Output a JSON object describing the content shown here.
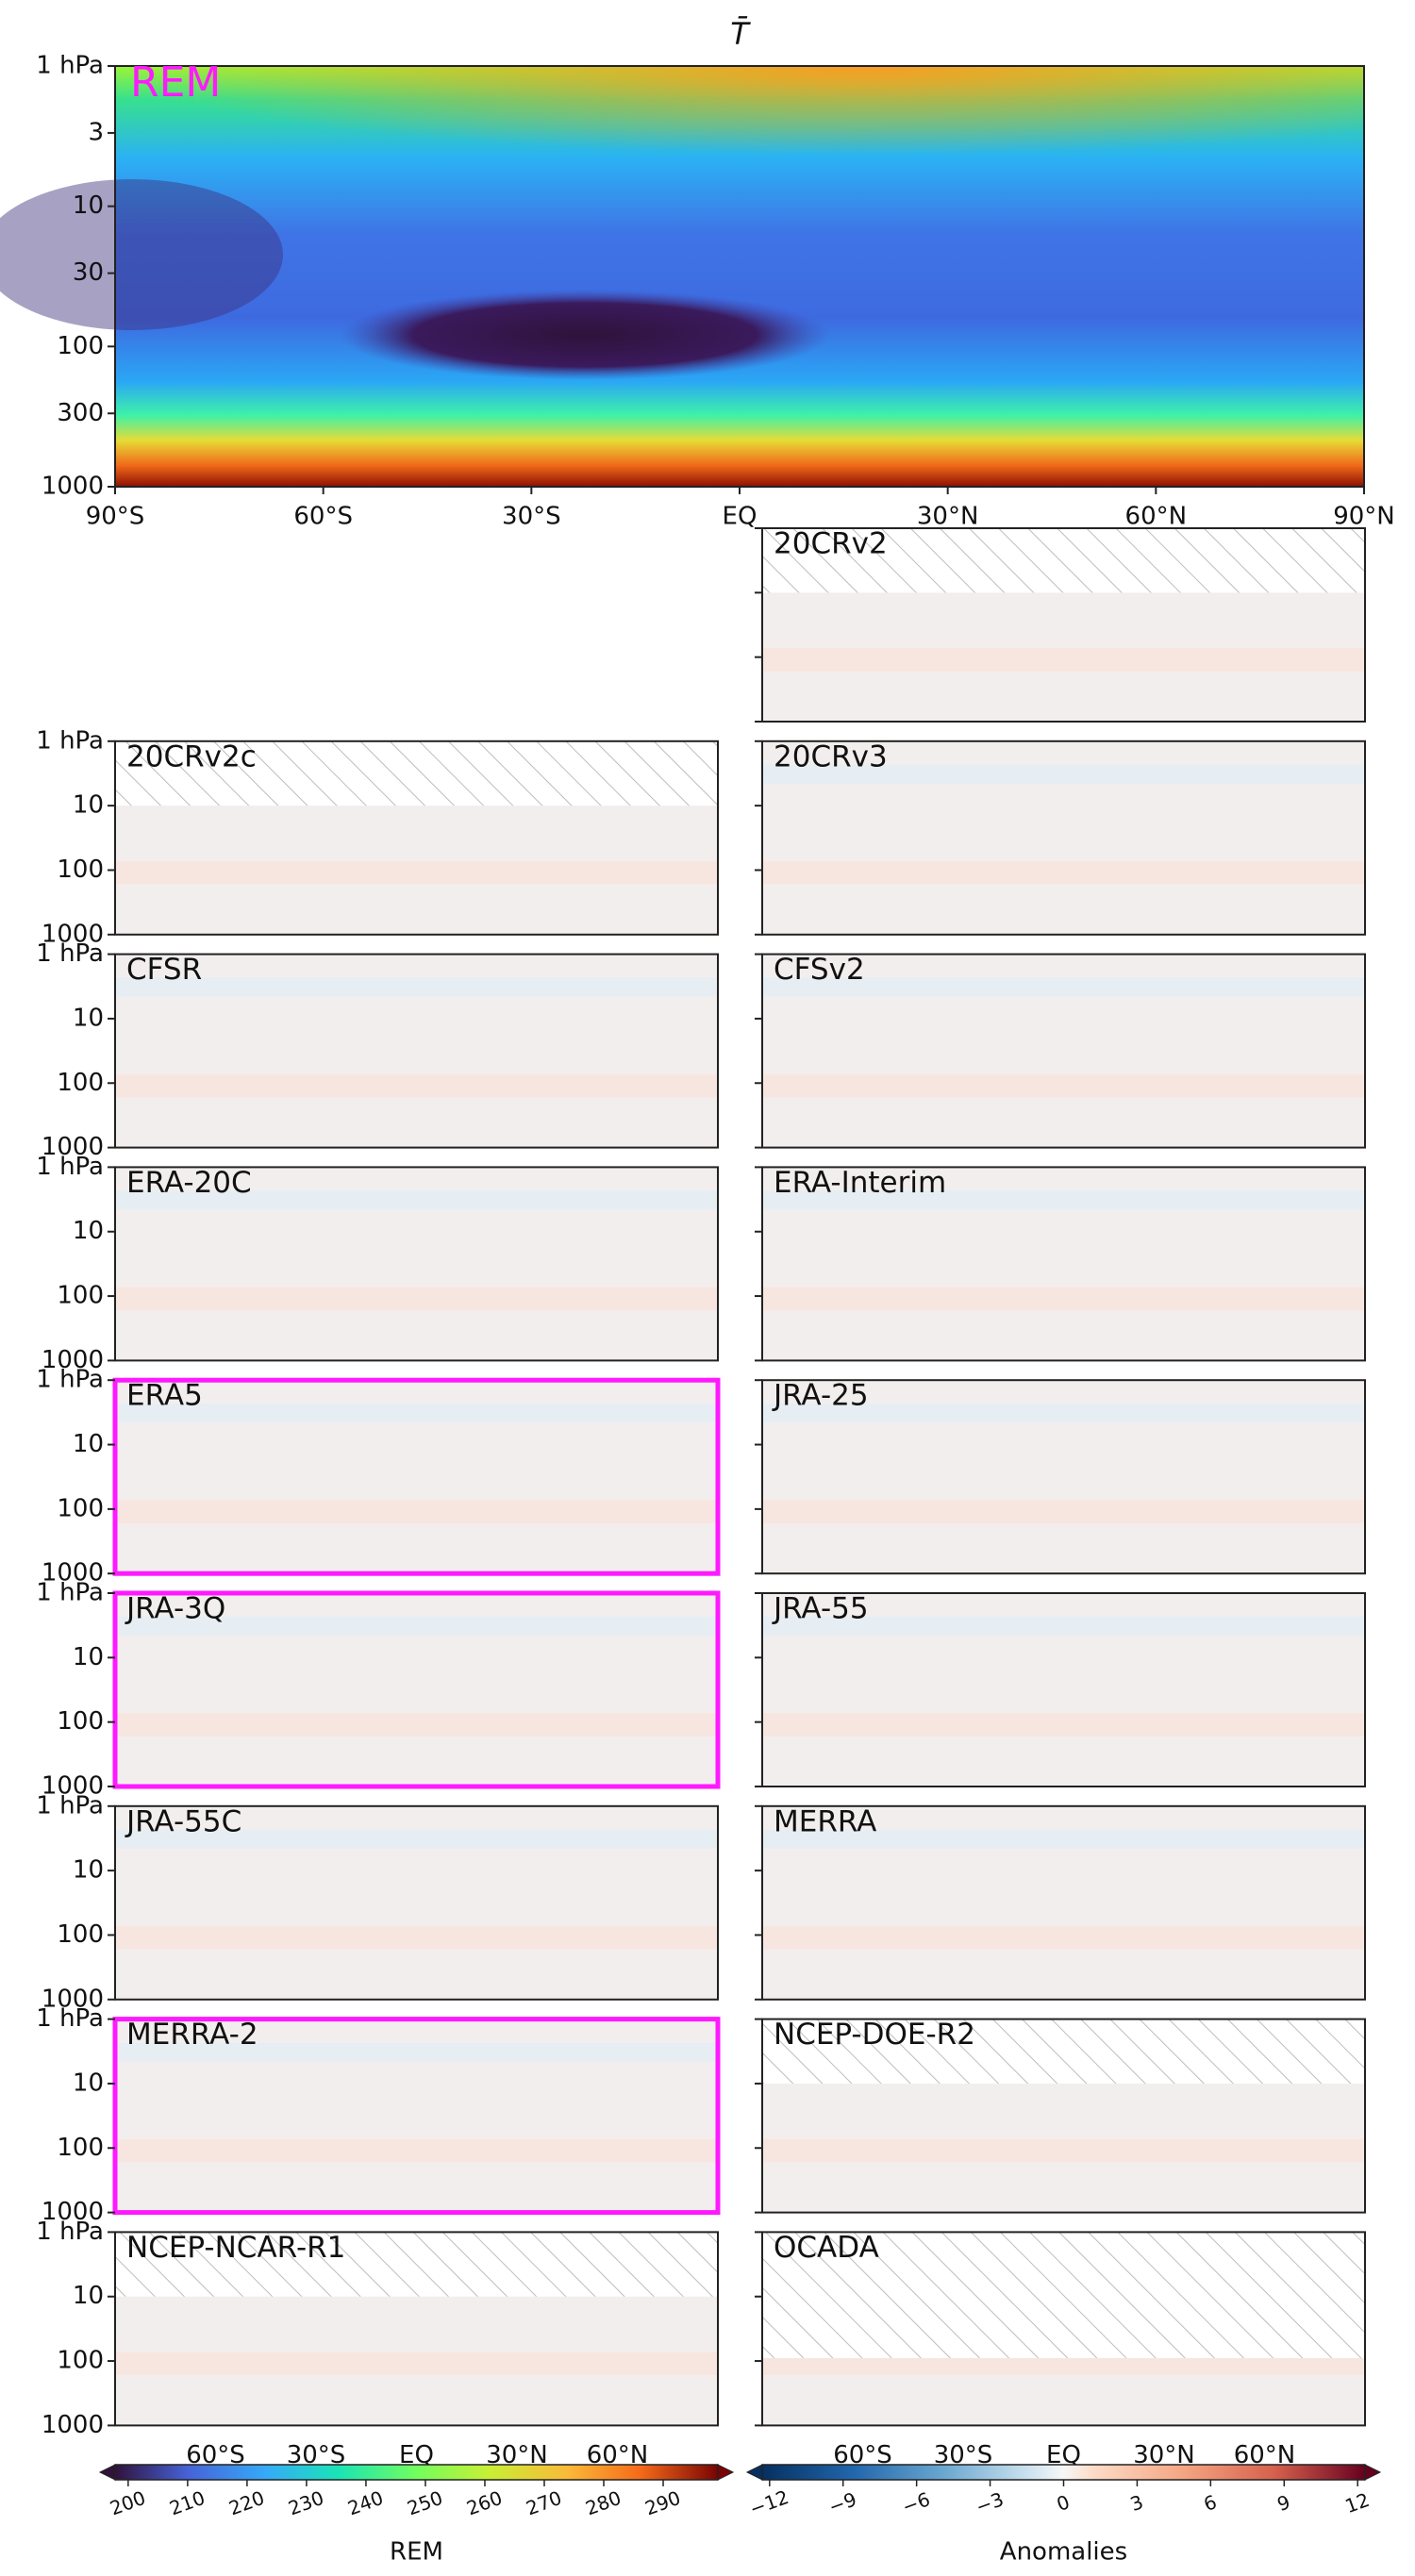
{
  "chart_data": {
    "type": "contour-panels",
    "title": "T̄",
    "main_panel": {
      "label": "REM",
      "label_color": "#ff19ff",
      "ylim": [
        1,
        1000
      ],
      "log_y": true,
      "yticks": [
        {
          "value": 1,
          "label": "1 hPa"
        },
        3,
        10,
        30,
        100,
        300,
        1000
      ],
      "xlim": [
        -90,
        90
      ],
      "xticks": [
        {
          "value": -90,
          "label": "90°S"
        },
        {
          "value": -60,
          "label": "60°S"
        },
        {
          "value": -30,
          "label": "30°S"
        },
        {
          "value": 0,
          "label": "EQ"
        },
        {
          "value": 30,
          "label": "30°N"
        },
        {
          "value": 60,
          "label": "60°N"
        },
        {
          "value": 90,
          "label": "90°N"
        }
      ]
    },
    "small_yticks": [
      {
        "value": 1,
        "label": "1 hPa"
      },
      10,
      100,
      1000
    ],
    "small_xticks": [
      {
        "value": -60,
        "label": "60°S"
      },
      {
        "value": -30,
        "label": "30°S"
      },
      {
        "value": 0,
        "label": "EQ"
      },
      {
        "value": 30,
        "label": "30°N"
      },
      {
        "value": 60,
        "label": "60°N"
      }
    ],
    "highlight_color": "#ff19ff",
    "panels": [
      {
        "label": "20CRv2",
        "hatched_above": 10
      },
      {
        "label": "20CRv2c",
        "hatched_above": 10
      },
      {
        "label": "20CRv3"
      },
      {
        "label": "CFSR"
      },
      {
        "label": "CFSv2"
      },
      {
        "label": "ERA-20C"
      },
      {
        "label": "ERA-Interim"
      },
      {
        "label": "ERA5",
        "highlight": true
      },
      {
        "label": "JRA-25"
      },
      {
        "label": "JRA-3Q",
        "highlight": true
      },
      {
        "label": "JRA-55"
      },
      {
        "label": "JRA-55C"
      },
      {
        "label": "MERRA"
      },
      {
        "label": "MERRA-2",
        "highlight": true
      },
      {
        "label": "NCEP-DOE-R2",
        "hatched_above": 10
      },
      {
        "label": "NCEP-NCAR-R1",
        "hatched_above": 10
      },
      {
        "label": "OCADA",
        "hatched_above": 90
      }
    ],
    "colorbars": [
      {
        "label": "REM",
        "lim": [
          197.8,
          299.2
        ],
        "ticks": [
          200,
          210,
          220,
          230,
          240,
          250,
          260,
          270,
          280,
          290
        ]
      },
      {
        "label": "Anomalies",
        "lim": [
          -12.3,
          12.3
        ],
        "ticks": [
          {
            "value": -12,
            "label": "−12"
          },
          {
            "value": -9,
            "label": "−9"
          },
          {
            "value": -6,
            "label": "−6"
          },
          {
            "value": -3,
            "label": "−3"
          },
          0,
          3,
          6,
          9,
          12
        ]
      }
    ]
  }
}
